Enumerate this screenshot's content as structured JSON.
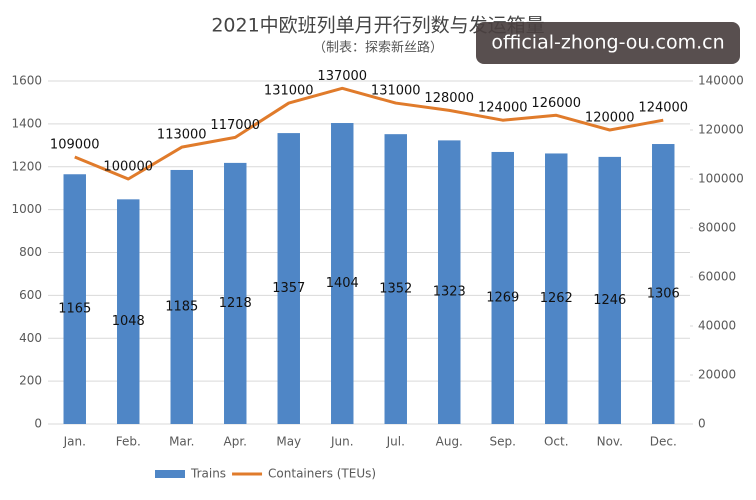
{
  "chart_data": {
    "type": "bar",
    "title": "2021中欧班列单月开行列数与发运箱量",
    "subtitle": "（制表：探索新丝路）",
    "watermark": "official-zhong-ou.com.cn",
    "categories": [
      "Jan.",
      "Feb.",
      "Mar.",
      "Apr.",
      "May",
      "Jun.",
      "Jul.",
      "Aug.",
      "Sep.",
      "Oct.",
      "Nov.",
      "Dec."
    ],
    "series": [
      {
        "name": "Trains",
        "type": "bar",
        "color": "#4f86c6",
        "values": [
          1165,
          1048,
          1185,
          1218,
          1357,
          1404,
          1352,
          1323,
          1269,
          1262,
          1246,
          1306
        ]
      },
      {
        "name": "Containers (TEUs)",
        "type": "line",
        "axis": "y2",
        "color": "#e07b2b",
        "values": [
          109000,
          100000,
          113000,
          117000,
          131000,
          137000,
          131000,
          128000,
          124000,
          126000,
          120000,
          124000
        ]
      }
    ],
    "ylim": [
      0,
      1600
    ],
    "yticks": [
      0,
      200,
      400,
      600,
      800,
      1000,
      1200,
      1400,
      1600
    ],
    "y2lim": [
      0,
      140000
    ],
    "y2ticks": [
      0,
      20000,
      40000,
      60000,
      80000,
      100000,
      120000,
      140000
    ],
    "grid": true,
    "legend": "bottom"
  }
}
